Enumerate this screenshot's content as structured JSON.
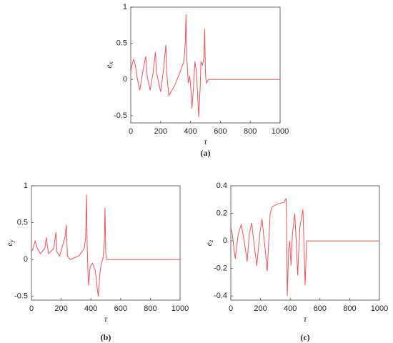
{
  "chart_data": [
    {
      "type": "line",
      "xlabel": "τ",
      "ylabel": "e",
      "ylabel_sub": "x",
      "caption": "(a)",
      "color": "#e8545a",
      "x": [
        0,
        10,
        20,
        30,
        45,
        60,
        80,
        100,
        110,
        130,
        150,
        165,
        172,
        200,
        220,
        235,
        240,
        255,
        290,
        330,
        355,
        365,
        370,
        375,
        385,
        395,
        405,
        410,
        420,
        430,
        440,
        455,
        465,
        470,
        480,
        490,
        495,
        500,
        505,
        520,
        600,
        800,
        1000
      ],
      "values": [
        0.1,
        0.22,
        0.28,
        0.2,
        0.0,
        -0.15,
        0.1,
        0.32,
        0.05,
        -0.15,
        0.1,
        0.38,
        0.1,
        -0.17,
        0.15,
        0.48,
        0.1,
        -0.22,
        -0.1,
        0.1,
        0.25,
        0.5,
        0.9,
        0.3,
        -0.05,
        0.05,
        -0.2,
        -0.4,
        -0.1,
        0.25,
        0.1,
        -0.52,
        -0.1,
        0.25,
        0.2,
        0.3,
        0.7,
        0.1,
        -0.05,
        0,
        0,
        0,
        0
      ],
      "xlim": [
        0,
        1000
      ],
      "xticks": [
        0,
        200,
        400,
        600,
        800,
        1000
      ],
      "ylim": [
        -0.6,
        1
      ],
      "yticks": [
        -0.5,
        0,
        0.5,
        1
      ]
    },
    {
      "type": "line",
      "xlabel": "τ",
      "ylabel": "e",
      "ylabel_sub": "y",
      "caption": "(b)",
      "color": "#e8545a",
      "x": [
        0,
        10,
        25,
        40,
        60,
        90,
        100,
        115,
        150,
        165,
        172,
        190,
        225,
        235,
        242,
        260,
        320,
        355,
        365,
        370,
        375,
        380,
        385,
        395,
        410,
        430,
        440,
        450,
        460,
        470,
        480,
        490,
        495,
        500,
        505,
        520,
        600,
        800,
        1000
      ],
      "values": [
        0.1,
        0.15,
        0.25,
        0.15,
        0.08,
        0.15,
        0.3,
        0.08,
        0.15,
        0.37,
        0.1,
        0.05,
        0.3,
        0.47,
        0.05,
        0.0,
        0.05,
        0.15,
        0.3,
        0.88,
        0.2,
        -0.15,
        -0.35,
        -0.1,
        -0.05,
        -0.15,
        -0.35,
        -0.5,
        -0.2,
        -0.05,
        0.0,
        0.2,
        0.7,
        0.1,
        0.0,
        0,
        0,
        0,
        0
      ],
      "xlim": [
        0,
        1000
      ],
      "xticks": [
        0,
        200,
        400,
        600,
        800,
        1000
      ],
      "ylim": [
        -0.55,
        1
      ],
      "yticks": [
        -0.5,
        0,
        0.5,
        1
      ]
    },
    {
      "type": "line",
      "xlabel": "τ",
      "ylabel": "e",
      "ylabel_sub": "z",
      "caption": "(c)",
      "color": "#e8545a",
      "x": [
        0,
        10,
        30,
        50,
        70,
        90,
        110,
        125,
        140,
        160,
        175,
        195,
        210,
        230,
        245,
        265,
        280,
        320,
        360,
        372,
        376,
        380,
        390,
        397,
        405,
        415,
        430,
        440,
        450,
        465,
        485,
        492,
        500,
        510,
        600,
        800,
        1000
      ],
      "values": [
        0.1,
        0.05,
        -0.13,
        0.05,
        0.12,
        0.0,
        -0.15,
        0.05,
        0.13,
        -0.05,
        -0.18,
        0.05,
        0.16,
        -0.05,
        -0.22,
        0.2,
        0.25,
        0.27,
        0.28,
        0.31,
        0.1,
        -0.4,
        -0.05,
        0.0,
        -0.18,
        0.05,
        0.2,
        0.0,
        -0.25,
        0.1,
        0.23,
        0.0,
        -0.32,
        0,
        0,
        0,
        0
      ],
      "xlim": [
        0,
        1000
      ],
      "xticks": [
        0,
        200,
        400,
        600,
        800,
        1000
      ],
      "ylim": [
        -0.43,
        0.4
      ],
      "yticks": [
        -0.4,
        -0.2,
        0,
        0.2,
        0.4
      ]
    }
  ]
}
